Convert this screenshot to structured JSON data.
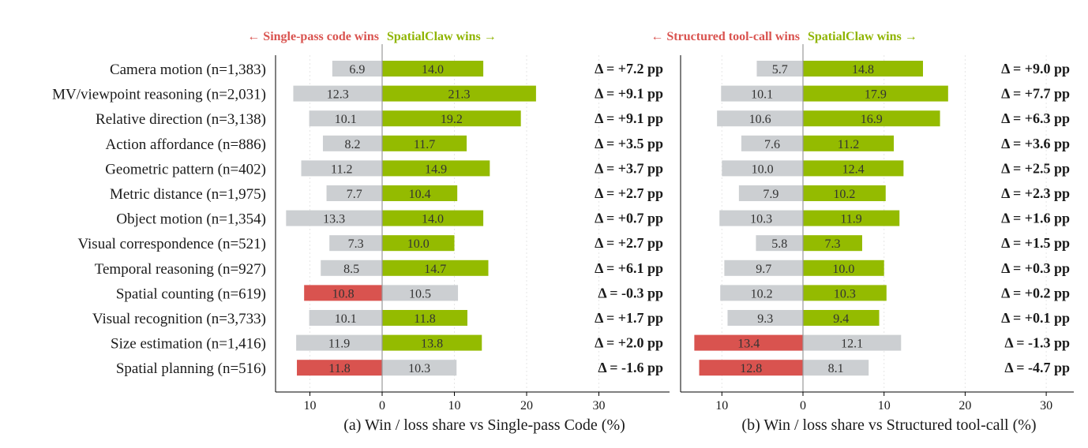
{
  "colors": {
    "win": "#94bb00",
    "loss": "#d9534f",
    "neutral": "#cccfd2",
    "win_text": "#8fb400",
    "loss_text": "#d9534f",
    "zero_line": "#999999",
    "grid": "#e6e6e6"
  },
  "chart_data": {
    "type": "bar",
    "orientation": "horizontal-diverging",
    "categories": [
      "Camera motion (n=1,383)",
      "MV/viewpoint reasoning (n=2,031)",
      "Relative direction (n=3,138)",
      "Action affordance (n=886)",
      "Geometric pattern (n=402)",
      "Metric distance (n=1,975)",
      "Object motion (n=1,354)",
      "Visual correspondence (n=521)",
      "Temporal reasoning (n=927)",
      "Spatial counting (n=619)",
      "Visual recognition (n=3,733)",
      "Size estimation (n=1,416)",
      "Spatial planning (n=516)"
    ],
    "panels": [
      {
        "xlabel": "(a)  Win / loss share vs Single-pass Code  (%)",
        "left_header": "← Single-pass code wins",
        "right_header": "SpatialClaw wins →",
        "xticks": [
          "10",
          "0",
          "10",
          "20",
          "30"
        ],
        "xlim": [
          -15,
          30
        ],
        "series": [
          {
            "name": "Single-pass code wins",
            "values": [
              6.9,
              12.3,
              10.1,
              8.2,
              11.2,
              7.7,
              13.3,
              7.3,
              8.5,
              10.8,
              10.1,
              11.9,
              11.8
            ]
          },
          {
            "name": "SpatialClaw wins",
            "values": [
              14.0,
              21.3,
              19.2,
              11.7,
              14.9,
              10.4,
              14.0,
              10.0,
              14.7,
              10.5,
              11.8,
              13.8,
              10.3
            ]
          }
        ],
        "deltas": [
          "Δ = +7.2 pp",
          "Δ = +9.1 pp",
          "Δ = +9.1 pp",
          "Δ = +3.5 pp",
          "Δ = +3.7 pp",
          "Δ = +2.7 pp",
          "Δ = +0.7 pp",
          "Δ = +2.7 pp",
          "Δ = +6.1 pp",
          "Δ = -0.3 pp",
          "Δ = +1.7 pp",
          "Δ = +2.0 pp",
          "Δ = -1.6 pp"
        ]
      },
      {
        "xlabel": "(b)  Win / loss share vs Structured tool-call  (%)",
        "left_header": "← Structured tool-call wins",
        "right_header": "SpatialClaw wins →",
        "xticks": [
          "10",
          "0",
          "10",
          "20",
          "30"
        ],
        "xlim": [
          -15,
          30
        ],
        "series": [
          {
            "name": "Structured tool-call wins",
            "values": [
              5.7,
              10.1,
              10.6,
              7.6,
              10.0,
              7.9,
              10.3,
              5.8,
              9.7,
              10.2,
              9.3,
              13.4,
              12.8
            ]
          },
          {
            "name": "SpatialClaw wins",
            "values": [
              14.8,
              17.9,
              16.9,
              11.2,
              12.4,
              10.2,
              11.9,
              7.3,
              10.0,
              10.3,
              9.4,
              12.1,
              8.1
            ]
          }
        ],
        "deltas": [
          "Δ = +9.0 pp",
          "Δ = +7.7 pp",
          "Δ = +6.3 pp",
          "Δ = +3.6 pp",
          "Δ = +2.5 pp",
          "Δ = +2.3 pp",
          "Δ = +1.6 pp",
          "Δ = +1.5 pp",
          "Δ = +0.3 pp",
          "Δ = +0.2 pp",
          "Δ = +0.1 pp",
          "Δ = -1.3 pp",
          "Δ = -4.7 pp"
        ]
      }
    ]
  }
}
